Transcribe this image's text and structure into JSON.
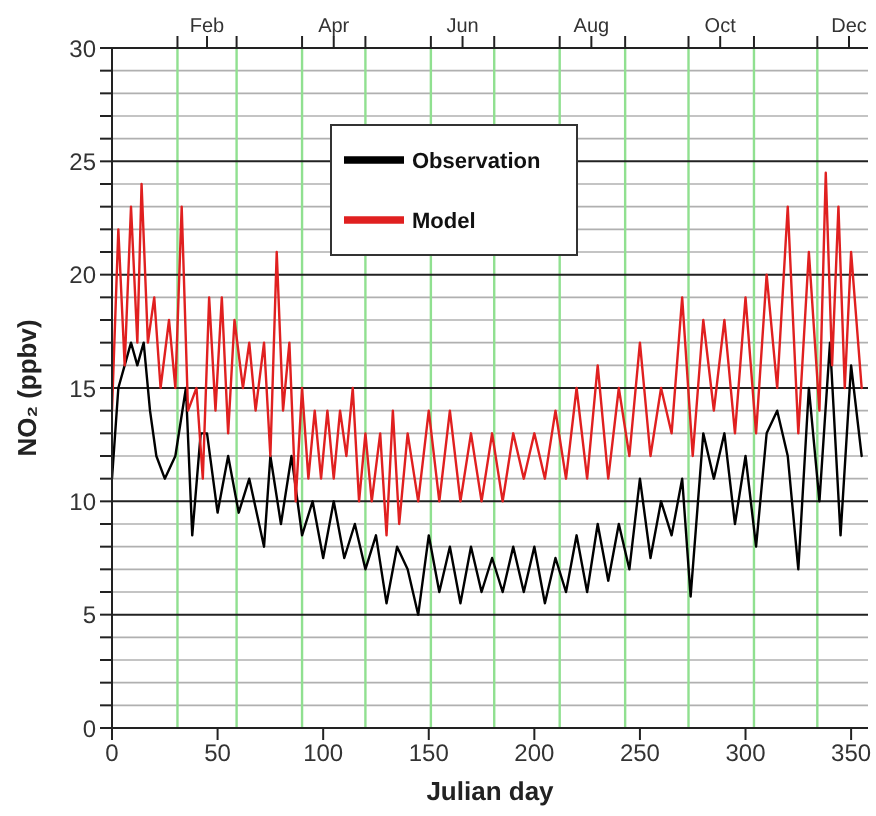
{
  "chart_data": {
    "type": "line",
    "xlabel": "Julian day",
    "ylabel": "NO₂ (ppbv)",
    "xlim": [
      0,
      358
    ],
    "xticks": [
      0,
      50,
      100,
      150,
      200,
      250,
      300,
      350
    ],
    "x2lim": [
      "--01-01",
      "--12-25"
    ],
    "x2ticks": [
      {
        "value": "--02-01",
        "label": null
      },
      {
        "value": "--02-15",
        "label": "Feb"
      },
      {
        "value": "--03-01",
        "label": null
      },
      {
        "value": "--04-01",
        "label": null
      },
      {
        "value": "--04-16",
        "label": "Apr"
      },
      {
        "value": "--05-01",
        "label": null
      },
      {
        "value": "--06-01",
        "label": null
      },
      {
        "value": "--06-16",
        "label": "Jun"
      },
      {
        "value": "--07-01",
        "label": null
      },
      {
        "value": "--08-01",
        "label": null
      },
      {
        "value": "--08-16",
        "label": "Aug"
      },
      {
        "value": "--09-01",
        "label": null
      },
      {
        "value": "--10-01",
        "label": null
      },
      {
        "value": "--10-16",
        "label": "Oct"
      },
      {
        "value": "--11-01",
        "label": null
      },
      {
        "value": "--12-01",
        "label": null
      },
      {
        "value": "--12-16",
        "label": "Dec"
      }
    ],
    "ylim": [
      0,
      30
    ],
    "yticks": [
      0,
      {
        "value": 1,
        "label": null
      },
      {
        "value": 2,
        "label": null
      },
      {
        "value": 3,
        "label": null
      },
      {
        "value": 4,
        "label": null
      },
      5,
      {
        "value": 6,
        "label": null
      },
      {
        "value": 7,
        "label": null
      },
      {
        "value": 8,
        "label": null
      },
      {
        "value": 9,
        "label": null
      },
      10,
      {
        "value": 11,
        "label": null
      },
      {
        "value": 12,
        "label": null
      },
      {
        "value": 13,
        "label": null
      },
      {
        "value": 14,
        "label": null
      },
      15,
      {
        "value": 16,
        "label": null
      },
      {
        "value": 17,
        "label": null
      },
      {
        "value": 18,
        "label": null
      },
      {
        "value": 19,
        "label": null
      },
      20,
      {
        "value": 21,
        "label": null
      },
      {
        "value": 22,
        "label": null
      },
      {
        "value": 23,
        "label": null
      },
      {
        "value": 24,
        "label": null
      },
      25,
      {
        "value": 26,
        "label": null
      },
      {
        "value": 27,
        "label": null
      },
      {
        "value": 28,
        "label": null
      },
      {
        "value": 29,
        "label": null
      },
      30
    ],
    "grid": true,
    "legend": "top",
    "marker": "none",
    "line_style": "solid",
    "series": [
      {
        "name": "Observation",
        "color": "#000000",
        "x": [
          0,
          3,
          6,
          9,
          12,
          15,
          18,
          21,
          25,
          30,
          35,
          38,
          42,
          45,
          50,
          55,
          60,
          65,
          72,
          75,
          80,
          85,
          90,
          95,
          100,
          105,
          110,
          115,
          120,
          125,
          130,
          135,
          140,
          145,
          150,
          155,
          160,
          165,
          170,
          175,
          180,
          185,
          190,
          195,
          200,
          205,
          210,
          215,
          220,
          225,
          230,
          235,
          240,
          245,
          250,
          255,
          260,
          265,
          270,
          274,
          280,
          285,
          290,
          295,
          300,
          305,
          310,
          315,
          320,
          325,
          330,
          335,
          340,
          345,
          350,
          355
        ],
        "values": [
          11,
          15,
          16,
          17,
          16,
          17,
          14,
          12,
          11,
          12,
          15,
          8.5,
          13,
          13,
          9.5,
          12,
          9.5,
          11,
          8,
          12,
          9,
          12,
          8.5,
          10,
          7.5,
          10,
          7.5,
          9,
          7,
          8.5,
          5.5,
          8,
          7,
          5,
          8.5,
          6,
          8,
          5.5,
          8,
          6,
          7.5,
          6,
          8,
          6,
          8,
          5.5,
          7.5,
          6,
          8.5,
          6,
          9,
          6.5,
          9,
          7,
          11,
          7.5,
          10,
          8.5,
          11,
          5.8,
          13,
          11,
          13,
          9,
          12,
          8,
          13,
          14,
          12,
          7,
          15,
          10,
          17,
          8.5,
          16,
          12
        ]
      },
      {
        "name": "Model",
        "color": "#e02020",
        "x": [
          0,
          3,
          6,
          9,
          12,
          14,
          17,
          20,
          23,
          27,
          30,
          33,
          36,
          40,
          43,
          46,
          49,
          52,
          55,
          58,
          62,
          65,
          68,
          72,
          75,
          78,
          81,
          84,
          87,
          90,
          93,
          96,
          99,
          102,
          105,
          108,
          111,
          114,
          117,
          120,
          123,
          127,
          130,
          133,
          136,
          140,
          145,
          150,
          155,
          160,
          165,
          170,
          175,
          180,
          185,
          190,
          195,
          200,
          205,
          210,
          215,
          220,
          225,
          230,
          235,
          240,
          245,
          250,
          255,
          260,
          265,
          270,
          275,
          280,
          285,
          290,
          295,
          300,
          305,
          310,
          315,
          320,
          325,
          330,
          335,
          338,
          341,
          344,
          347,
          350,
          355
        ],
        "values": [
          14,
          22,
          16,
          23,
          17,
          24,
          17,
          19,
          15,
          18,
          15,
          23,
          14,
          15,
          11,
          19,
          14,
          19,
          13,
          18,
          15,
          17,
          14,
          17,
          12,
          21,
          14,
          17,
          10,
          15,
          11,
          14,
          11,
          14,
          11,
          14,
          12,
          15,
          10,
          13,
          10,
          13,
          8.5,
          14,
          9,
          13,
          10,
          14,
          10,
          14,
          10,
          13,
          10,
          13,
          10,
          13,
          11,
          13,
          11,
          14,
          11,
          15,
          11,
          16,
          11,
          15,
          12,
          17,
          12,
          15,
          13,
          19,
          12,
          18,
          14,
          18,
          13,
          19,
          13,
          20,
          15,
          23,
          13,
          21,
          14,
          24.5,
          16,
          23,
          15,
          21,
          15
        ]
      }
    ]
  }
}
